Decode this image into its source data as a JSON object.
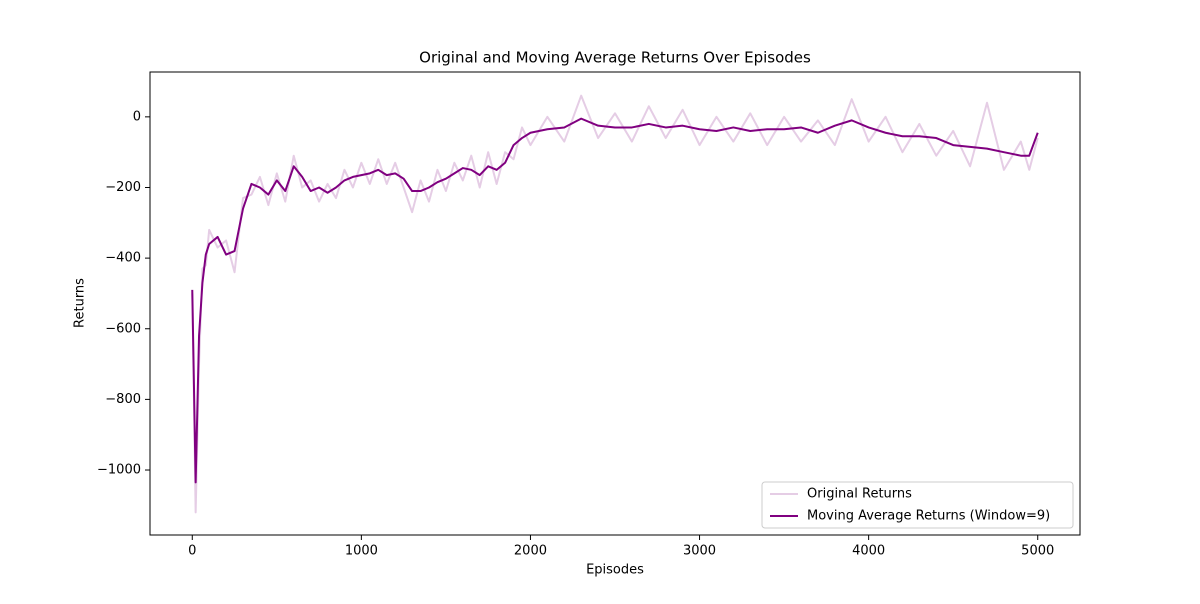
{
  "chart_data": {
    "type": "line",
    "title": "Original and Moving Average Returns Over Episodes",
    "xlabel": "Episodes",
    "ylabel": "Returns",
    "x": [
      0,
      20,
      40,
      60,
      80,
      100,
      150,
      200,
      250,
      300,
      350,
      400,
      450,
      500,
      550,
      600,
      650,
      700,
      750,
      800,
      850,
      900,
      950,
      1000,
      1050,
      1100,
      1150,
      1200,
      1250,
      1300,
      1350,
      1400,
      1450,
      1500,
      1550,
      1600,
      1650,
      1700,
      1750,
      1800,
      1850,
      1900,
      1950,
      2000,
      2100,
      2200,
      2300,
      2400,
      2500,
      2600,
      2700,
      2800,
      2900,
      3000,
      3100,
      3200,
      3300,
      3400,
      3500,
      3600,
      3700,
      3800,
      3900,
      4000,
      4100,
      4200,
      4300,
      4400,
      4500,
      4600,
      4700,
      4800,
      4900,
      4950,
      5000
    ],
    "series": [
      {
        "name": "Original Returns",
        "color": "#e5cde5",
        "values": [
          -500,
          -1120,
          -700,
          -430,
          -420,
          -320,
          -370,
          -350,
          -440,
          -230,
          -220,
          -170,
          -250,
          -160,
          -240,
          -110,
          -200,
          -180,
          -240,
          -190,
          -230,
          -150,
          -200,
          -130,
          -190,
          -120,
          -190,
          -130,
          -200,
          -270,
          -180,
          -240,
          -150,
          -210,
          -130,
          -180,
          -110,
          -200,
          -100,
          -190,
          -100,
          -120,
          -30,
          -80,
          0,
          -70,
          60,
          -60,
          10,
          -70,
          30,
          -60,
          20,
          -80,
          0,
          -70,
          10,
          -80,
          0,
          -70,
          -10,
          -80,
          50,
          -70,
          0,
          -100,
          -20,
          -110,
          -40,
          -140,
          40,
          -150,
          -70,
          -150,
          -60
        ]
      },
      {
        "name": "Moving Average Returns (Window=9)",
        "color": "#800080",
        "values": [
          -490,
          -1035,
          -620,
          -470,
          -390,
          -360,
          -340,
          -390,
          -380,
          -260,
          -190,
          -200,
          -220,
          -180,
          -210,
          -140,
          -170,
          -210,
          -200,
          -215,
          -200,
          -180,
          -170,
          -165,
          -160,
          -150,
          -165,
          -160,
          -175,
          -210,
          -210,
          -200,
          -185,
          -175,
          -160,
          -145,
          -150,
          -165,
          -140,
          -150,
          -130,
          -80,
          -60,
          -45,
          -35,
          -30,
          -5,
          -25,
          -30,
          -30,
          -20,
          -30,
          -25,
          -35,
          -40,
          -30,
          -40,
          -35,
          -35,
          -30,
          -45,
          -25,
          -10,
          -30,
          -45,
          -55,
          -55,
          -60,
          -80,
          -85,
          -90,
          -100,
          -110,
          -110,
          -45
        ]
      }
    ],
    "xlim": [
      -250,
      5250
    ],
    "xticks": [
      0,
      1000,
      2000,
      3000,
      4000,
      5000
    ],
    "ylim": [
      -1184,
      127
    ],
    "yticks": [
      {
        "value": -1000,
        "label": "−1000"
      },
      {
        "value": -800,
        "label": "−800"
      },
      {
        "value": -600,
        "label": "−600"
      },
      {
        "value": -400,
        "label": "−400"
      },
      {
        "value": -200,
        "label": "−200"
      },
      0
    ],
    "legend": "lower right"
  }
}
